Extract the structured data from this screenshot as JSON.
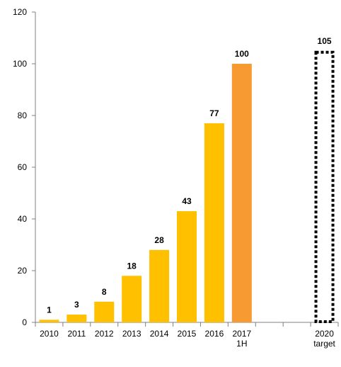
{
  "chart_data": {
    "type": "bar",
    "title": "",
    "xlabel": "",
    "ylabel": "",
    "ylim": [
      0,
      120
    ],
    "yticks": [
      0,
      20,
      40,
      60,
      80,
      100,
      120
    ],
    "grid": false,
    "legend": "none",
    "categories": [
      {
        "label": "2010",
        "value": 1,
        "style": "actual"
      },
      {
        "label": "2011",
        "value": 3,
        "style": "actual"
      },
      {
        "label": "2012",
        "value": 8,
        "style": "actual"
      },
      {
        "label": "2013",
        "value": 18,
        "style": "actual"
      },
      {
        "label": "2014",
        "value": 28,
        "style": "actual"
      },
      {
        "label": "2015",
        "value": 43,
        "style": "actual"
      },
      {
        "label": "2016",
        "value": 77,
        "style": "actual"
      },
      {
        "label": "2017\n1H",
        "value": 100,
        "style": "highlight"
      },
      {
        "label": "",
        "value": null,
        "style": "empty"
      },
      {
        "label": "",
        "value": null,
        "style": "empty"
      },
      {
        "label": "2020\ntarget",
        "value": 105,
        "style": "target"
      }
    ],
    "colors": {
      "actual": "#FFC000",
      "highlight": "#F79A32",
      "target_outline": "#000000",
      "axis": "#808080"
    }
  }
}
